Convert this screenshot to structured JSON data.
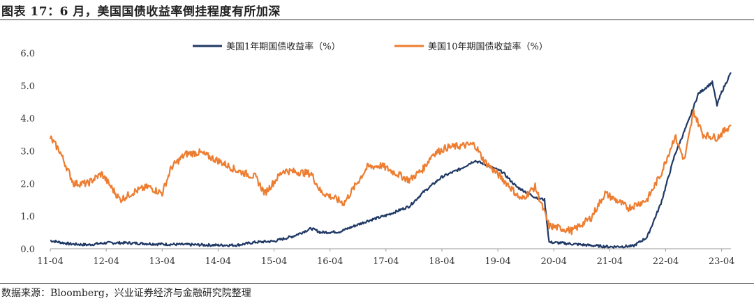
{
  "header": {
    "title": "图表 17：6 月，美国国债收益率倒挂程度有所加深"
  },
  "footer": {
    "source": "数据来源：Bloomberg，兴业证券经济与金融研究院整理"
  },
  "chart_data": {
    "type": "line",
    "x_ticks": [
      "11-04",
      "12-04",
      "13-04",
      "14-04",
      "15-04",
      "16-04",
      "17-04",
      "18-04",
      "19-04",
      "20-04",
      "21-04",
      "22-04",
      "23-04"
    ],
    "y_ticks": [
      "0.0",
      "1.0",
      "2.0",
      "3.0",
      "4.0",
      "5.0",
      "6.0"
    ],
    "ylim": [
      0,
      6
    ],
    "xlim": [
      "2011-04",
      "2023-06"
    ],
    "legend": "top-center",
    "grid": false,
    "series": [
      {
        "name": "美国1年期国债收益率（%）",
        "color": "#1f3864",
        "points": [
          [
            "2011-04",
            0.25
          ],
          [
            "2011-08",
            0.15
          ],
          [
            "2011-12",
            0.12
          ],
          [
            "2012-04",
            0.18
          ],
          [
            "2012-08",
            0.18
          ],
          [
            "2012-12",
            0.16
          ],
          [
            "2013-04",
            0.14
          ],
          [
            "2013-08",
            0.13
          ],
          [
            "2013-12",
            0.12
          ],
          [
            "2014-04",
            0.11
          ],
          [
            "2014-08",
            0.11
          ],
          [
            "2014-12",
            0.2
          ],
          [
            "2015-04",
            0.23
          ],
          [
            "2015-08",
            0.38
          ],
          [
            "2015-12",
            0.62
          ],
          [
            "2016-02",
            0.5
          ],
          [
            "2016-06",
            0.52
          ],
          [
            "2016-12",
            0.85
          ],
          [
            "2017-04",
            1.02
          ],
          [
            "2017-09",
            1.3
          ],
          [
            "2017-12",
            1.73
          ],
          [
            "2018-04",
            2.2
          ],
          [
            "2018-08",
            2.45
          ],
          [
            "2018-11",
            2.7
          ],
          [
            "2019-01",
            2.6
          ],
          [
            "2019-05",
            2.35
          ],
          [
            "2019-08",
            1.9
          ],
          [
            "2019-12",
            1.58
          ],
          [
            "2020-02",
            1.5
          ],
          [
            "2020-03",
            0.2
          ],
          [
            "2020-06",
            0.17
          ],
          [
            "2020-12",
            0.1
          ],
          [
            "2021-04",
            0.06
          ],
          [
            "2021-09",
            0.08
          ],
          [
            "2021-12",
            0.35
          ],
          [
            "2022-03",
            1.4
          ],
          [
            "2022-06",
            2.9
          ],
          [
            "2022-09",
            3.95
          ],
          [
            "2022-11",
            4.75
          ],
          [
            "2023-02",
            5.1
          ],
          [
            "2023-03",
            4.4
          ],
          [
            "2023-04",
            4.8
          ],
          [
            "2023-06",
            5.4
          ]
        ]
      },
      {
        "name": "美国10年期国债收益率（%）",
        "color": "#ed7d31",
        "points": [
          [
            "2011-04",
            3.4
          ],
          [
            "2011-06",
            3.0
          ],
          [
            "2011-09",
            2.0
          ],
          [
            "2011-12",
            2.0
          ],
          [
            "2012-03",
            2.3
          ],
          [
            "2012-07",
            1.5
          ],
          [
            "2012-10",
            1.75
          ],
          [
            "2013-01",
            1.9
          ],
          [
            "2013-04",
            1.7
          ],
          [
            "2013-06",
            2.5
          ],
          [
            "2013-09",
            2.9
          ],
          [
            "2013-12",
            2.95
          ],
          [
            "2014-04",
            2.7
          ],
          [
            "2014-08",
            2.4
          ],
          [
            "2014-12",
            2.2
          ],
          [
            "2015-02",
            1.7
          ],
          [
            "2015-06",
            2.4
          ],
          [
            "2015-12",
            2.3
          ],
          [
            "2016-02",
            1.75
          ],
          [
            "2016-07",
            1.4
          ],
          [
            "2016-12",
            2.5
          ],
          [
            "2017-03",
            2.55
          ],
          [
            "2017-09",
            2.1
          ],
          [
            "2017-12",
            2.45
          ],
          [
            "2018-02",
            2.9
          ],
          [
            "2018-05",
            3.1
          ],
          [
            "2018-11",
            3.2
          ],
          [
            "2019-01",
            2.7
          ],
          [
            "2019-06",
            2.0
          ],
          [
            "2019-09",
            1.5
          ],
          [
            "2019-12",
            1.9
          ],
          [
            "2020-03",
            0.7
          ],
          [
            "2020-08",
            0.55
          ],
          [
            "2020-12",
            0.95
          ],
          [
            "2021-03",
            1.7
          ],
          [
            "2021-08",
            1.25
          ],
          [
            "2021-12",
            1.5
          ],
          [
            "2022-03",
            2.3
          ],
          [
            "2022-06",
            3.45
          ],
          [
            "2022-08",
            2.7
          ],
          [
            "2022-10",
            4.2
          ],
          [
            "2022-12",
            3.5
          ],
          [
            "2023-03",
            3.4
          ],
          [
            "2023-06",
            3.8
          ]
        ]
      }
    ]
  }
}
